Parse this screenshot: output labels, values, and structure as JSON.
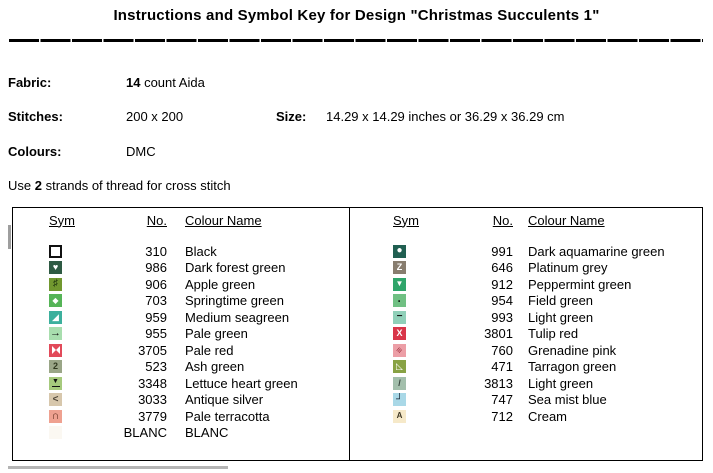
{
  "title": "Instructions and Symbol Key for Design \"Christmas Succulents 1\"",
  "info": {
    "fabric_label": "Fabric:",
    "fabric_count": "14",
    "fabric_rest": " count Aida",
    "stitches_label": "Stitches:",
    "stitches_value": "200 x 200",
    "size_label": "Size:",
    "size_value": "14.29 x 14.29 inches or 36.29 x 36.29 cm",
    "colours_label": "Colours:",
    "colours_value": "DMC",
    "strands_prefix": "Use ",
    "strands_count": "2",
    "strands_suffix": " strands of thread for cross stitch"
  },
  "key_table": {
    "headers": {
      "sym": "Sym",
      "no": "No.",
      "name": "Colour Name"
    },
    "left_rows": [
      {
        "no": "310",
        "name": "Black",
        "sym": {
          "glyph": "",
          "bg": "#ffffff",
          "fg": "#000000",
          "cls": "border"
        }
      },
      {
        "no": "986",
        "name": "Dark forest green",
        "sym": {
          "glyph": "♥",
          "bg": "#2e5a43",
          "fg": "#ffffff",
          "size": 9
        }
      },
      {
        "no": "906",
        "name": "Apple green",
        "sym": {
          "glyph": "♯",
          "bg": "#71982f",
          "fg": "#223a10",
          "size": 10,
          "bold": true
        }
      },
      {
        "no": "703",
        "name": "Springtime green",
        "sym": {
          "glyph": "◆",
          "bg": "#55b457",
          "fg": "#ffffff",
          "size": 8
        }
      },
      {
        "no": "959",
        "name": "Medium seagreen",
        "sym": {
          "glyph": "◢",
          "bg": "#3cb09d",
          "fg": "#ffffff",
          "size": 9
        }
      },
      {
        "no": "955",
        "name": "Pale green",
        "sym": {
          "glyph": "→",
          "bg": "#a8deae",
          "fg": "#111111",
          "size": 11,
          "bold": true
        }
      },
      {
        "no": "3705",
        "name": "Pale red",
        "sym": {
          "glyph": "",
          "bg": "#e24a5a",
          "fg": "#ffffff",
          "cls": "bowtie"
        }
      },
      {
        "no": "523",
        "name": "Ash green",
        "sym": {
          "glyph": "2",
          "bg": "#9aa687",
          "fg": "#30391f",
          "size": 9,
          "bold": true
        }
      },
      {
        "no": "3348",
        "name": "Lettuce heart green",
        "sym": {
          "glyph": "▼",
          "bg": "#a6ca7d",
          "fg": "#111111",
          "cls": "hourglass",
          "size": 7
        }
      },
      {
        "no": "3033",
        "name": "Antique silver",
        "sym": {
          "glyph": "<",
          "bg": "#d7c7ac",
          "fg": "#4f4639",
          "size": 10,
          "bold": true
        }
      },
      {
        "no": "3779",
        "name": "Pale terracotta",
        "sym": {
          "glyph": "∩",
          "bg": "#efa190",
          "fg": "#5c2a1c",
          "size": 11,
          "bold": true
        }
      },
      {
        "no": "BLANC",
        "name": "BLANC",
        "sym": {
          "glyph": "",
          "bg": "#fbf8f2",
          "fg": "#000000",
          "cls": "blank"
        }
      }
    ],
    "right_rows": [
      {
        "no": "991",
        "name": "Dark aquamarine green",
        "sym": {
          "glyph": "●",
          "bg": "#205f51",
          "fg": "#ffffff",
          "size": 10
        }
      },
      {
        "no": "646",
        "name": "Platinum grey",
        "sym": {
          "glyph": "Z",
          "bg": "#887d6f",
          "fg": "#ffffff",
          "size": 9,
          "bold": true
        }
      },
      {
        "no": "912",
        "name": "Peppermint green",
        "sym": {
          "glyph": "▼",
          "bg": "#2fa56a",
          "fg": "#ffffff",
          "size": 8
        }
      },
      {
        "no": "954",
        "name": "Field green",
        "sym": {
          "glyph": "·",
          "bg": "#70c083",
          "fg": "#15251a",
          "size": 12,
          "bold": true
        }
      },
      {
        "no": "993",
        "name": "Light green",
        "sym": {
          "glyph": "−",
          "bg": "#90d0b9",
          "fg": "#111111",
          "size": 10,
          "bold": true
        }
      },
      {
        "no": "3801",
        "name": "Tulip red",
        "sym": {
          "glyph": "X",
          "bg": "#d93549",
          "fg": "#ffffff",
          "size": 9,
          "bold": true
        }
      },
      {
        "no": "760",
        "name": "Grenadine pink",
        "sym": {
          "glyph": "≡",
          "bg": "#ec9ea6",
          "fg": "#9c2f3d",
          "cls": "slashes",
          "size": 9,
          "bold": true
        }
      },
      {
        "no": "471",
        "name": "Tarragon green",
        "sym": {
          "glyph": "◺",
          "bg": "#88a244",
          "fg": "#ffffff",
          "size": 9
        }
      },
      {
        "no": "3813",
        "name": "Light green",
        "sym": {
          "glyph": "/",
          "bg": "#a3bfac",
          "fg": "#36443c",
          "size": 9,
          "bold": true
        }
      },
      {
        "no": "747",
        "name": "Sea mist blue",
        "sym": {
          "glyph": "┘",
          "bg": "#a9d8e7",
          "fg": "#14202e",
          "size": 10,
          "bold": true
        }
      },
      {
        "no": "712",
        "name": "Cream",
        "sym": {
          "glyph": "A",
          "bg": "#f6e9c9",
          "fg": "#3c3522",
          "size": 8,
          "bold": true
        }
      }
    ]
  },
  "fragments": {
    "grey": "#b0b0b0"
  }
}
